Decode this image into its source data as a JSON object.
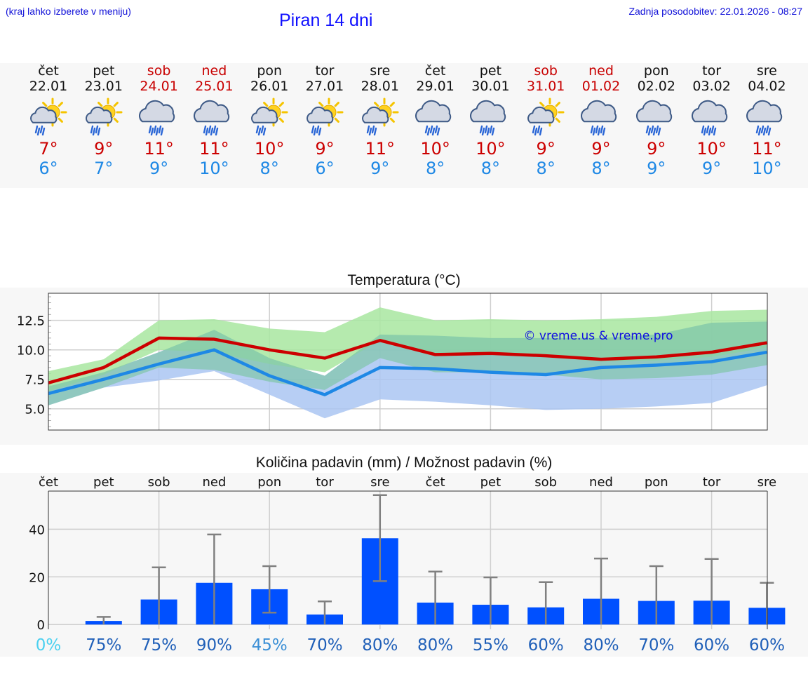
{
  "header": {
    "hint": "(kraj lahko izberete v meniju)",
    "title": "Piran 14 dni",
    "updated": "Zadnja posodobitev: 22.01.2026 - 08:27"
  },
  "colors": {
    "max_temp": "#cc0000",
    "min_temp": "#1e88e5",
    "weekend": "#c80000",
    "precip_bar": "#0050ff",
    "band_green": "#a8e6a0",
    "band_blue": "#aac6f2",
    "band_overlap": "#7fc6a8"
  },
  "days": [
    {
      "name": "čet",
      "date": "22.01",
      "weekend": false,
      "icon": "sun-cloud-rain-icon",
      "max": "7°",
      "min": "6°"
    },
    {
      "name": "pet",
      "date": "23.01",
      "weekend": false,
      "icon": "sun-cloud-rain-icon",
      "max": "9°",
      "min": "7°"
    },
    {
      "name": "sob",
      "date": "24.01",
      "weekend": true,
      "icon": "cloud-rain-icon",
      "max": "11°",
      "min": "9°"
    },
    {
      "name": "ned",
      "date": "25.01",
      "weekend": true,
      "icon": "cloud-rain-icon",
      "max": "11°",
      "min": "10°"
    },
    {
      "name": "pon",
      "date": "26.01",
      "weekend": false,
      "icon": "sun-cloud-rain-icon",
      "max": "10°",
      "min": "8°"
    },
    {
      "name": "tor",
      "date": "27.01",
      "weekend": false,
      "icon": "sun-cloud-rain-icon",
      "max": "9°",
      "min": "6°"
    },
    {
      "name": "sre",
      "date": "28.01",
      "weekend": false,
      "icon": "sun-cloud-rain-icon",
      "max": "11°",
      "min": "9°"
    },
    {
      "name": "čet",
      "date": "29.01",
      "weekend": false,
      "icon": "cloud-rain-icon",
      "max": "10°",
      "min": "8°"
    },
    {
      "name": "pet",
      "date": "30.01",
      "weekend": false,
      "icon": "cloud-rain-icon",
      "max": "10°",
      "min": "8°"
    },
    {
      "name": "sob",
      "date": "31.01",
      "weekend": true,
      "icon": "sun-cloud-rain-icon",
      "max": "9°",
      "min": "8°"
    },
    {
      "name": "ned",
      "date": "01.02",
      "weekend": true,
      "icon": "cloud-rain-icon",
      "max": "9°",
      "min": "8°"
    },
    {
      "name": "pon",
      "date": "02.02",
      "weekend": false,
      "icon": "cloud-rain-icon",
      "max": "9°",
      "min": "9°"
    },
    {
      "name": "tor",
      "date": "03.02",
      "weekend": false,
      "icon": "cloud-rain-icon",
      "max": "10°",
      "min": "9°"
    },
    {
      "name": "sre",
      "date": "04.02",
      "weekend": false,
      "icon": "cloud-rain-icon",
      "max": "11°",
      "min": "10°"
    }
  ],
  "chart_data": [
    {
      "type": "line",
      "title": "Temperatura (°C)",
      "ylim": [
        3.2,
        14.8
      ],
      "yticks": [
        "12.5",
        "10.0",
        "7.5",
        "5.0"
      ],
      "ytick_values": [
        12.5,
        10.0,
        7.5,
        5.0
      ],
      "watermark": "© vreme.us & vreme.pro",
      "x": [
        0,
        1,
        2,
        3,
        4,
        5,
        6,
        7,
        8,
        9,
        10,
        11,
        12,
        13
      ],
      "series": [
        {
          "name": "max",
          "values": [
            7.2,
            8.5,
            11.0,
            10.9,
            10.0,
            9.3,
            10.8,
            9.6,
            9.7,
            9.5,
            9.2,
            9.4,
            9.8,
            10.6
          ]
        },
        {
          "name": "min",
          "values": [
            6.3,
            7.5,
            8.8,
            10.0,
            7.8,
            6.2,
            8.5,
            8.4,
            8.1,
            7.9,
            8.5,
            8.7,
            9.0,
            9.8
          ]
        }
      ],
      "band_max": {
        "upper": [
          8.2,
          9.2,
          12.5,
          12.6,
          11.8,
          11.5,
          13.6,
          12.5,
          12.6,
          12.5,
          12.6,
          12.8,
          13.3,
          13.4
        ],
        "lower": [
          6.5,
          7.9,
          10.0,
          9.8,
          8.8,
          8.1,
          10.8,
          9.6,
          9.6,
          9.4,
          9.0,
          9.1,
          9.4,
          10.2
        ]
      },
      "band_min": {
        "upper": [
          6.9,
          8.1,
          9.8,
          11.7,
          9.3,
          7.8,
          11.3,
          11.2,
          11.0,
          11.0,
          11.0,
          11.3,
          12.3,
          12.4
        ],
        "lower": [
          5.3,
          6.8,
          7.4,
          8.2,
          6.2,
          4.2,
          5.8,
          5.6,
          5.3,
          4.9,
          5.0,
          5.2,
          5.5,
          7.0
        ]
      }
    },
    {
      "type": "bar",
      "title": "Količina padavin (mm) / Možnost padavin (%)",
      "categories": [
        "čet",
        "pet",
        "sob",
        "ned",
        "pon",
        "tor",
        "sre",
        "čet",
        "pet",
        "sob",
        "ned",
        "pon",
        "tor",
        "sre"
      ],
      "ylim": [
        -2,
        56
      ],
      "yticks": [
        "40",
        "20",
        "0"
      ],
      "ytick_values": [
        40,
        20,
        0
      ],
      "values": [
        0,
        1.5,
        10.5,
        17.5,
        14.8,
        4.2,
        36.2,
        9.2,
        8.3,
        7.2,
        10.8,
        9.9,
        10.0,
        7.0
      ],
      "error_high": [
        0,
        3.2,
        24.0,
        37.8,
        24.5,
        9.7,
        54.3,
        22.2,
        19.8,
        17.8,
        27.7,
        24.5,
        27.5,
        17.5
      ],
      "error_low": [
        0,
        0,
        0,
        0,
        5.0,
        0,
        18.2,
        0,
        0,
        0,
        0,
        0,
        0,
        0
      ],
      "probability": [
        "0%",
        "75%",
        "75%",
        "90%",
        "45%",
        "70%",
        "80%",
        "80%",
        "55%",
        "60%",
        "80%",
        "70%",
        "60%",
        "60%"
      ]
    }
  ]
}
